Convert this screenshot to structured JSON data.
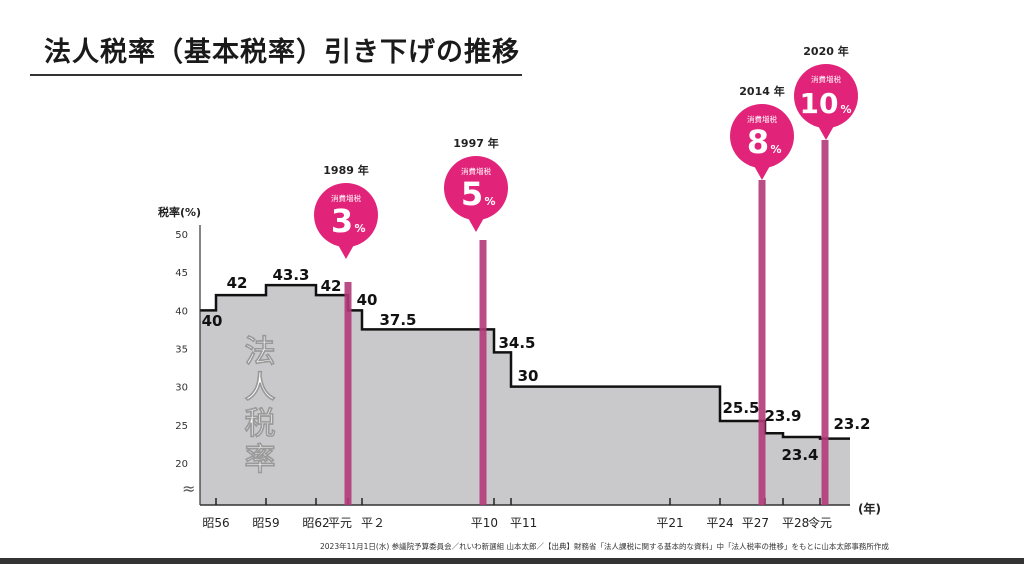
{
  "title": "法人税率（基本税率）引き下げの推移",
  "footer": "2023年11月1日(水) 参議院予算委員会／れいわ新選組 山本太郎／【出典】財務省「法人課税に関する基本的な資料」中「法人税率の推移」をもとに山本太郎事務所作成",
  "chart_data": {
    "type": "area",
    "subtype": "step",
    "ylabel": "税率(%)",
    "xlabel": "(年)",
    "area_label": "法人税率",
    "y_ticks": [
      20,
      25,
      30,
      35,
      40,
      45,
      50
    ],
    "ylim": [
      20,
      50
    ],
    "axis_break": true,
    "x_ticks": [
      {
        "year": 1981,
        "label": "昭56"
      },
      {
        "year": 1984,
        "label": "昭59"
      },
      {
        "year": 1987,
        "label": "昭62"
      },
      {
        "year": 1989,
        "label": "平元"
      },
      {
        "year": 1990,
        "label": "平２"
      },
      {
        "year": 1998,
        "label": "平10"
      },
      {
        "year": 1999,
        "label": "平11"
      },
      {
        "year": 2009,
        "label": "平21"
      },
      {
        "year": 2012,
        "label": "平24"
      },
      {
        "year": 2015,
        "label": "平27"
      },
      {
        "year": 2016,
        "label": "平28"
      },
      {
        "year": 2019,
        "label": "令元"
      }
    ],
    "steps": [
      {
        "from": 1980,
        "value": 40,
        "label": "40"
      },
      {
        "from": 1981,
        "value": 42,
        "label": "42"
      },
      {
        "from": 1984,
        "value": 43.3,
        "label": "43.3"
      },
      {
        "from": 1987,
        "value": 42,
        "label": "42"
      },
      {
        "from": 1989,
        "value": 40,
        "label": "40"
      },
      {
        "from": 1990,
        "value": 37.5,
        "label": "37.5"
      },
      {
        "from": 1998,
        "value": 34.5,
        "label": "34.5"
      },
      {
        "from": 1999,
        "value": 30,
        "label": "30"
      },
      {
        "from": 2012,
        "value": 25.5,
        "label": "25.5"
      },
      {
        "from": 2015,
        "value": 23.9,
        "label": "23.9"
      },
      {
        "from": 2016,
        "value": 23.4,
        "label": "23.4"
      },
      {
        "from": 2019,
        "value": 23.2,
        "label": "23.2"
      }
    ],
    "x_end": 2021,
    "markers": [
      {
        "year": 1989,
        "year_label": "1989 年",
        "caption": "消費増税",
        "rate": "3",
        "unit": "%"
      },
      {
        "year": 1997,
        "year_label": "1997 年",
        "caption": "消費増税",
        "rate": "5",
        "unit": "%"
      },
      {
        "year": 2014,
        "year_label": "2014 年",
        "caption": "消費増税",
        "rate": "8",
        "unit": "%"
      },
      {
        "year": 2020,
        "year_label": "2020 年",
        "caption": "消費増税",
        "rate": "10",
        "unit": "%"
      }
    ],
    "colors": {
      "area": "#c9c9cb",
      "step_line": "#111111",
      "marker": "#e2237a",
      "marker_line": "#b23a79"
    }
  }
}
